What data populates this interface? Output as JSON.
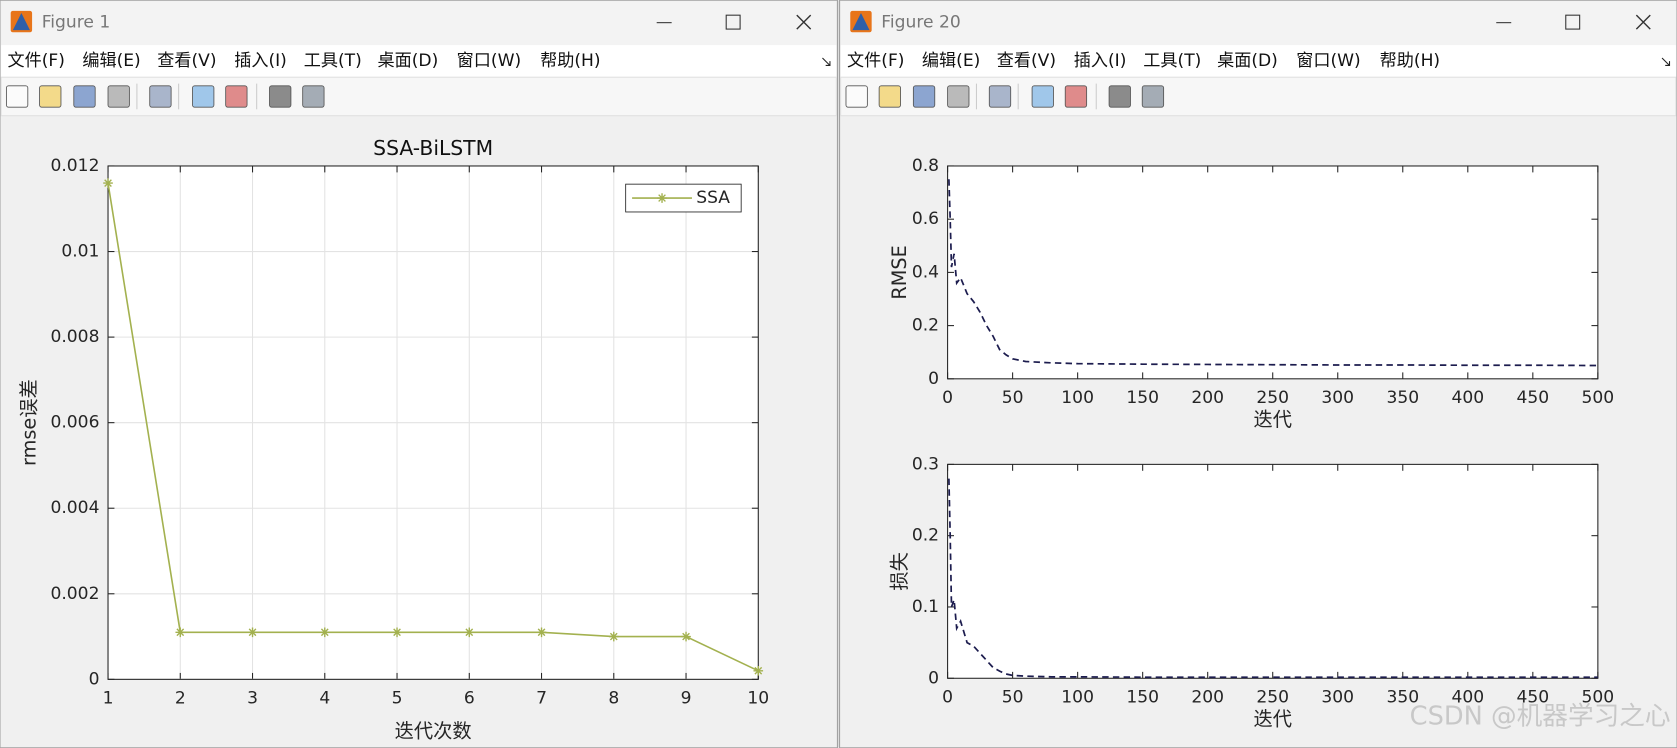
{
  "windows": [
    {
      "title": "Figure 1",
      "menu": [
        "文件(F)",
        "编辑(E)",
        "查看(V)",
        "插入(I)",
        "工具(T)",
        "桌面(D)",
        "窗口(W)",
        "帮助(H)"
      ]
    },
    {
      "title": "Figure 20",
      "menu": [
        "文件(F)",
        "编辑(E)",
        "查看(V)",
        "插入(I)",
        "工具(T)",
        "桌面(D)",
        "窗口(W)",
        "帮助(H)"
      ]
    }
  ],
  "chart_data": [
    {
      "type": "line",
      "title": "SSA-BiLSTM",
      "x_label": "迭代次数",
      "y_label": "rmse误差",
      "x": [
        1,
        2,
        3,
        4,
        5,
        6,
        7,
        8,
        9,
        10
      ],
      "series": [
        {
          "name": "SSA",
          "color": "#a3b14f",
          "values": [
            0.0116,
            0.0011,
            0.0011,
            0.0011,
            0.0011,
            0.0011,
            0.0011,
            0.001,
            0.001,
            0.0002
          ]
        }
      ],
      "xlim": [
        1,
        10
      ],
      "xticks": [
        1,
        2,
        3,
        4,
        5,
        6,
        7,
        8,
        9,
        10
      ],
      "ylim": [
        0,
        0.012
      ],
      "yticks": [
        0,
        0.002,
        0.004,
        0.006,
        0.008,
        0.01,
        0.012
      ],
      "grid": true,
      "legend": "upper right",
      "marker": "*"
    },
    {
      "type": "line",
      "x_label": "迭代",
      "y_label": "RMSE",
      "color": "#1c1c4e",
      "dashed": true,
      "x": [
        1,
        2,
        3,
        5,
        7,
        10,
        15,
        20,
        25,
        30,
        35,
        40,
        45,
        50,
        60,
        80,
        100,
        150,
        200,
        250,
        300,
        350,
        400,
        450,
        500
      ],
      "values": [
        0.75,
        0.6,
        0.42,
        0.47,
        0.36,
        0.38,
        0.32,
        0.29,
        0.25,
        0.2,
        0.16,
        0.11,
        0.09,
        0.075,
        0.065,
        0.06,
        0.057,
        0.055,
        0.054,
        0.053,
        0.052,
        0.052,
        0.051,
        0.051,
        0.05
      ],
      "xlim": [
        0,
        500
      ],
      "xticks": [
        0,
        50,
        100,
        150,
        200,
        250,
        300,
        350,
        400,
        450,
        500
      ],
      "ylim": [
        0,
        0.8
      ],
      "yticks": [
        0,
        0.2,
        0.4,
        0.6,
        0.8
      ],
      "grid": false
    },
    {
      "type": "line",
      "x_label": "迭代",
      "y_label": "损失",
      "color": "#1c1c4e",
      "dashed": true,
      "x": [
        1,
        2,
        3,
        5,
        7,
        10,
        15,
        20,
        25,
        30,
        35,
        40,
        45,
        50,
        60,
        80,
        100,
        150,
        200,
        250,
        300,
        350,
        400,
        450,
        500
      ],
      "values": [
        0.28,
        0.2,
        0.1,
        0.11,
        0.07,
        0.08,
        0.05,
        0.045,
        0.035,
        0.025,
        0.015,
        0.01,
        0.006,
        0.004,
        0.003,
        0.002,
        0.002,
        0.0015,
        0.0015,
        0.0015,
        0.0015,
        0.0015,
        0.0015,
        0.0015,
        0.0015
      ],
      "xlim": [
        0,
        500
      ],
      "xticks": [
        0,
        50,
        100,
        150,
        200,
        250,
        300,
        350,
        400,
        450,
        500
      ],
      "ylim": [
        0,
        0.3
      ],
      "yticks": [
        0,
        0.1,
        0.2,
        0.3
      ],
      "grid": false
    }
  ],
  "watermark": "CSDN @机器学习之心"
}
